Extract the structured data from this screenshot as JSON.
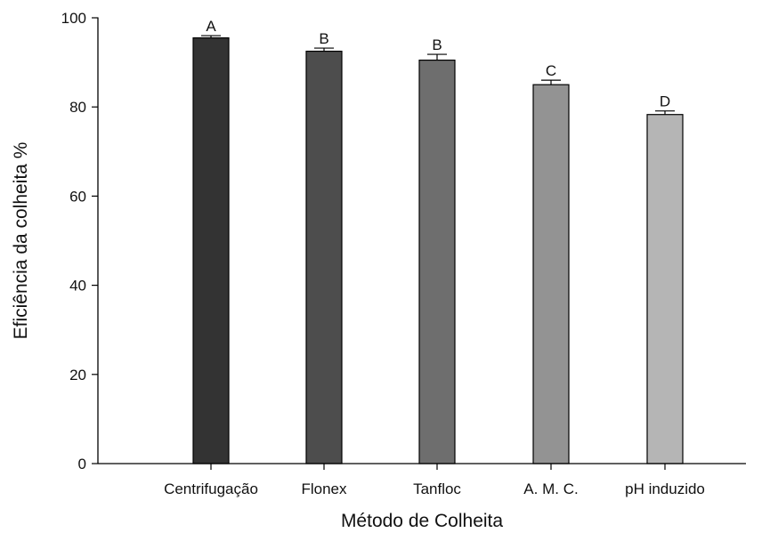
{
  "chart_data": {
    "type": "bar",
    "title": "",
    "xlabel": "Método de Colheita",
    "ylabel": "Eficiência da colheita %",
    "ylim": [
      0,
      100
    ],
    "yticks": [
      0,
      20,
      40,
      60,
      80,
      100
    ],
    "grid": false,
    "categories": [
      "Centrifugação",
      "Flonex",
      "Tanfloc",
      "A. M. C.",
      "pH induzido"
    ],
    "values": [
      95.5,
      92.5,
      90.5,
      85.0,
      78.3
    ],
    "errors": [
      0.5,
      0.7,
      1.3,
      1.0,
      0.8
    ],
    "significance_labels": [
      "A",
      "B",
      "B",
      "C",
      "D"
    ],
    "colors": [
      "#333333",
      "#4d4d4d",
      "#6e6e6e",
      "#939393",
      "#b5b5b5"
    ]
  }
}
